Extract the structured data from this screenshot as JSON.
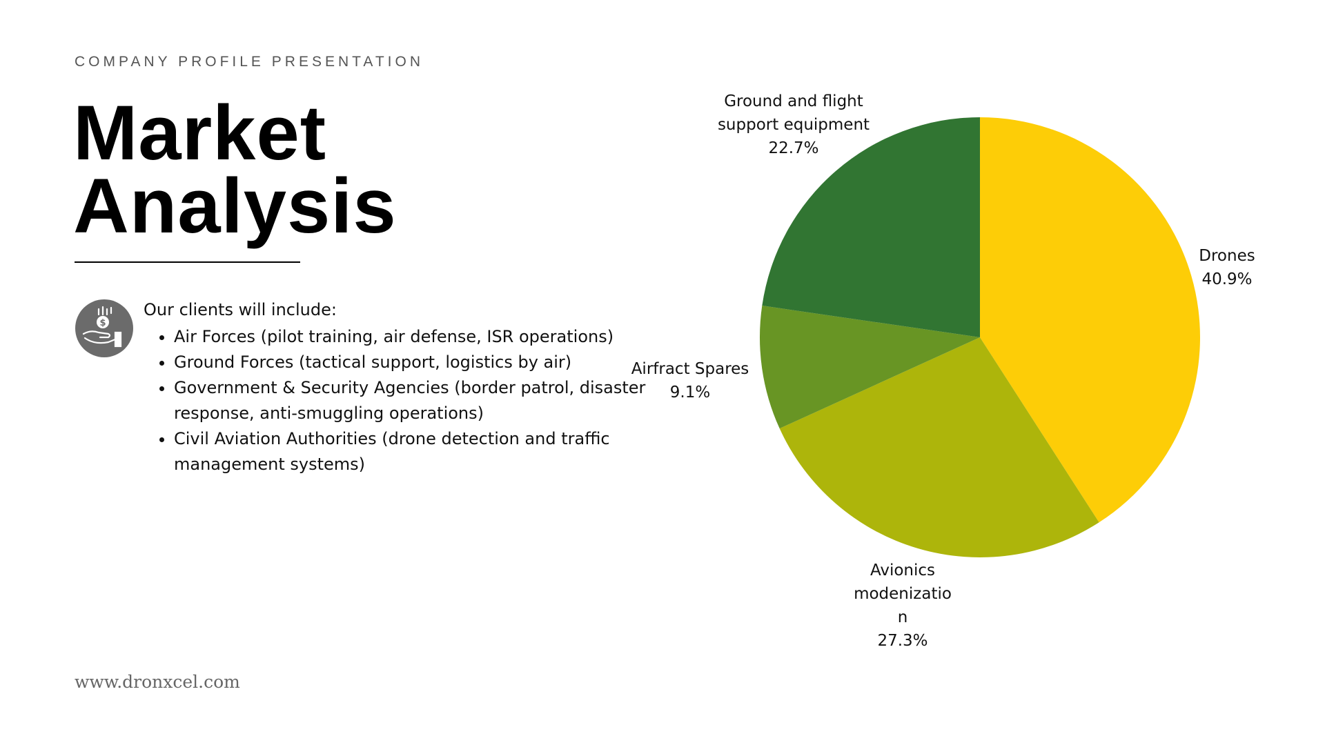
{
  "header": {
    "subtitle": "COMPANY PROFILE PRESENTATION",
    "title_line1": "Market",
    "title_line2": "Analysis"
  },
  "content": {
    "icon": "money-hand-icon",
    "intro": "Our clients will include:",
    "bullets": [
      "Air Forces (pilot training, air defense, ISR operations)",
      "Ground Forces (tactical support, logistics by air)",
      "Government & Security Agencies (border patrol, disaster response, anti-smuggling operations)",
      "Civil Aviation Authorities (drone detection and traffic management systems)"
    ]
  },
  "footer": {
    "url": "www.dronxcel.com"
  },
  "chart_data": {
    "type": "pie",
    "start": "12 o'clock, clockwise",
    "slices": [
      {
        "label": [
          "Drones"
        ],
        "value": 40.9,
        "value_label": "40.9%",
        "color": "#FDCD07"
      },
      {
        "label": [
          "Avionics",
          "modenizatio",
          "n"
        ],
        "value": 27.3,
        "value_label": "27.3%",
        "color": "#ADB50B"
      },
      {
        "label": [
          "Airfract Spares"
        ],
        "value": 9.1,
        "value_label": "9.1%",
        "color": "#689524"
      },
      {
        "label": [
          "Ground and flight",
          "support equipment"
        ],
        "value": 22.7,
        "value_label": "22.7%",
        "color": "#317532"
      }
    ]
  }
}
